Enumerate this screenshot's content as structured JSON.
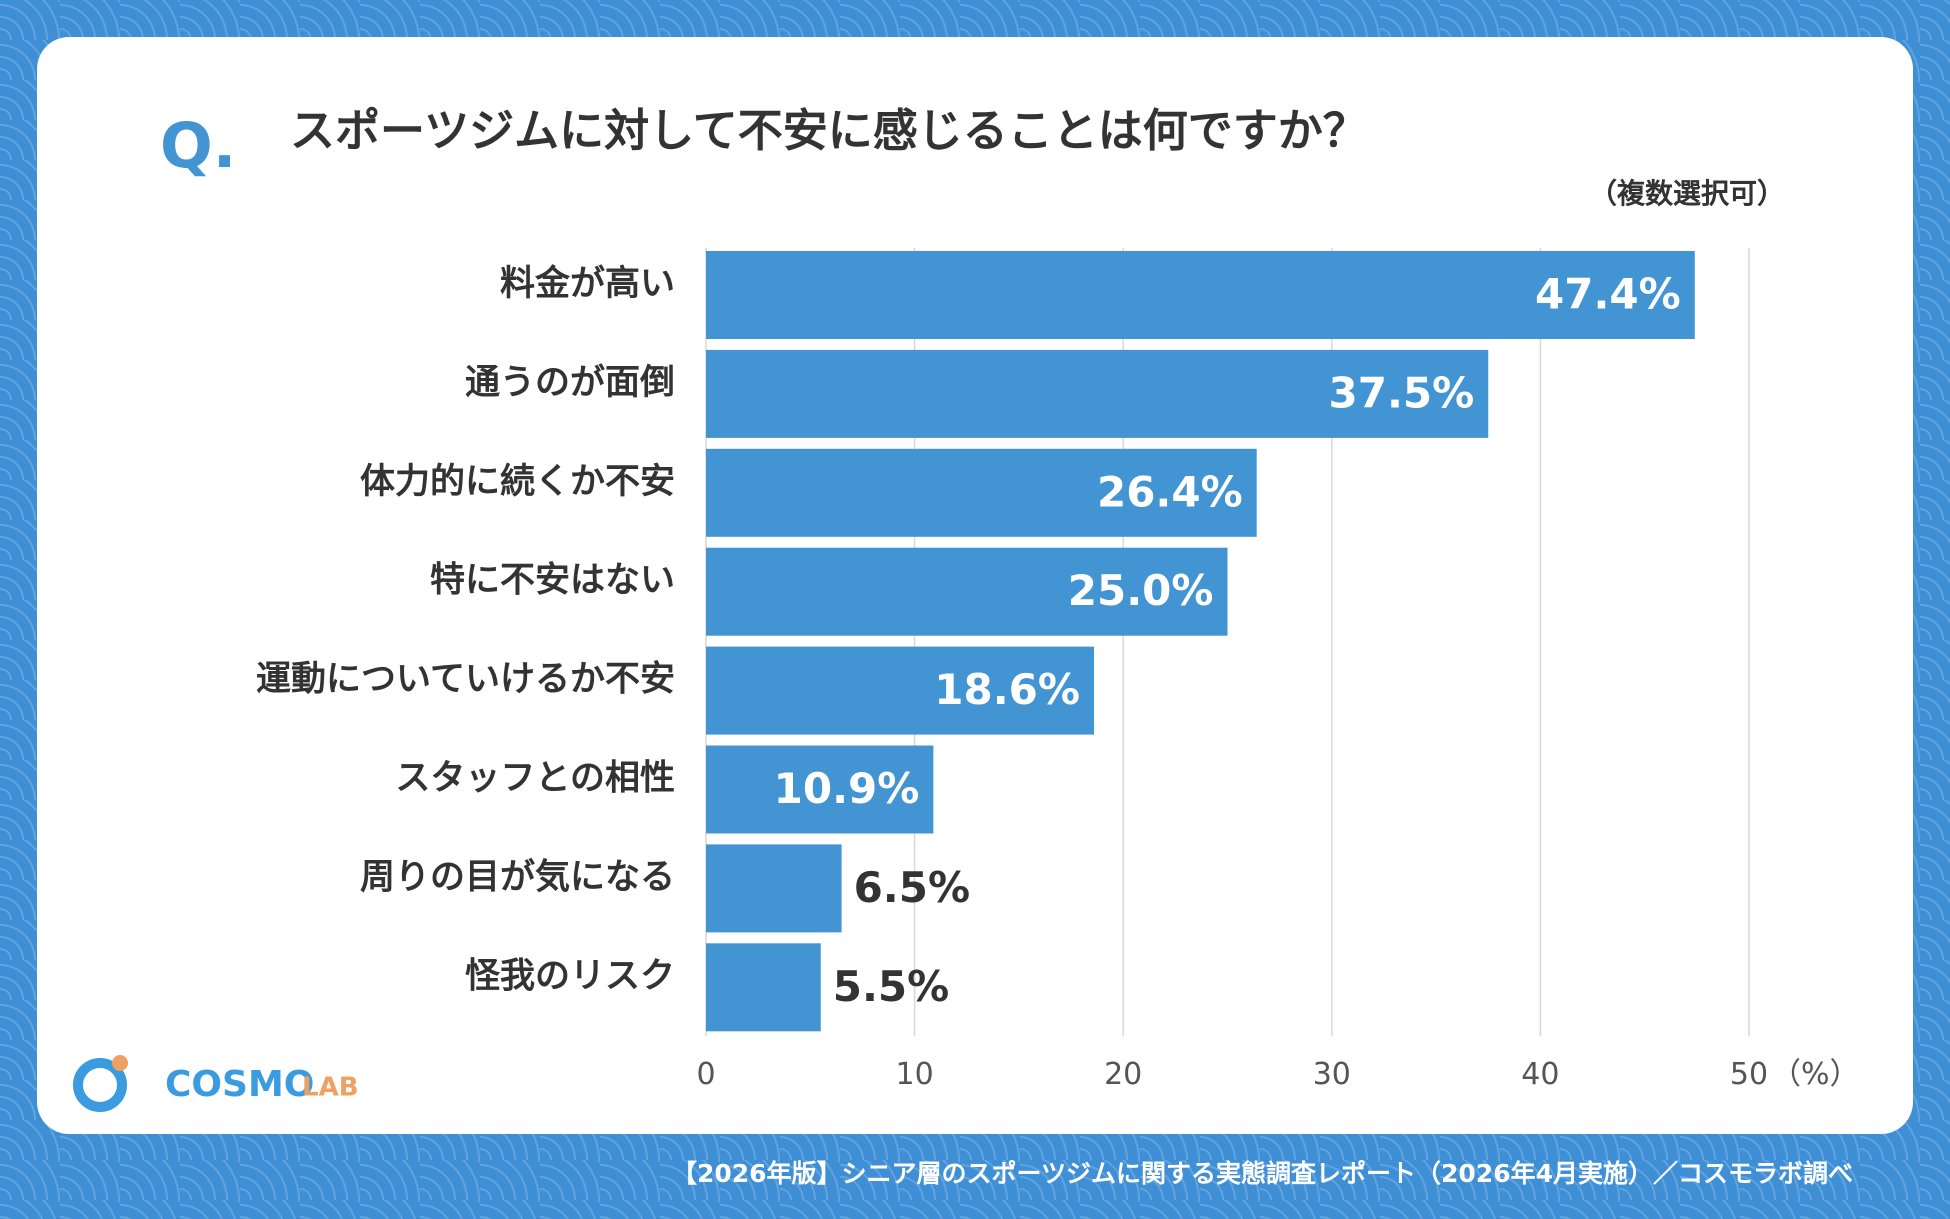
{
  "chart_data": {
    "type": "bar",
    "orientation": "horizontal",
    "marker": "Q.",
    "title": "スポーツジムに対して不安に感じることは何ですか？",
    "subtitle": "（複数選択可）",
    "categories": [
      "料金が高い",
      "通うのが面倒",
      "体力的に続くか不安",
      "特に不安はない",
      "運動についていけるか不安",
      "スタッフとの相性",
      "周りの目が気になる",
      "怪我のリスク"
    ],
    "values": [
      47.4,
      37.5,
      26.4,
      25.0,
      18.6,
      10.9,
      6.5,
      5.5
    ],
    "value_labels": [
      "47.4%",
      "37.5%",
      "26.4%",
      "25.0%",
      "18.6%",
      "10.9%",
      "6.5%",
      "5.5%"
    ],
    "color": "#4294d3",
    "xlim": [
      0,
      50
    ],
    "xticks": [
      0,
      10,
      20,
      30,
      40,
      50
    ],
    "xlabel": "（%）",
    "grid": true,
    "logo": {
      "main": "COSMO",
      "sub": "LAB"
    },
    "source": "【2026年版】シニア層のスポーツジムに関する実態調査レポート（2026年4月実施）／コスモラボ調べ"
  }
}
